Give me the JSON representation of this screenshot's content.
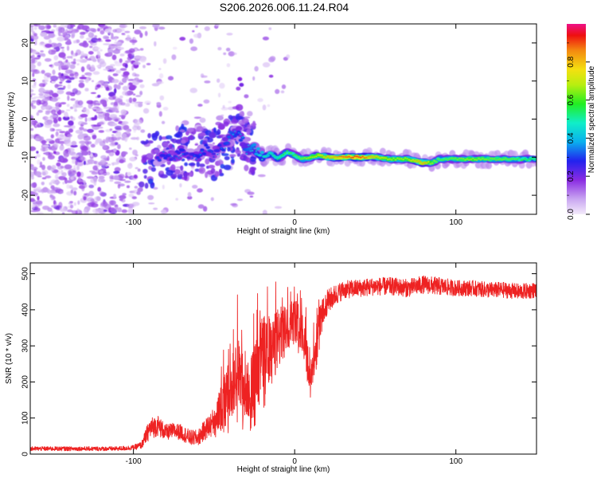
{
  "title": "S206.2026.006.11.24.R04",
  "chart_data": [
    {
      "type": "heatmap",
      "xlabel": "Height of straight line (km)",
      "ylabel": "Frequency (Hz)",
      "xlim": [
        -164,
        150
      ],
      "ylim": [
        -25,
        25
      ],
      "xticks": [
        -100,
        0,
        100
      ],
      "yticks": [
        20,
        10,
        0,
        -10,
        -20
      ],
      "colorbar": {
        "label": "Normalized spectral amplitude",
        "range": [
          0,
          1
        ],
        "ticks": [
          "0.0",
          "0.2",
          "0.4",
          "0.6",
          "0.8"
        ]
      },
      "ridge": {
        "x": [
          -85,
          -80,
          -75,
          -70,
          -65,
          -60,
          -55,
          -50,
          -45,
          -40,
          -35,
          -30,
          -25,
          -20,
          -15,
          -10,
          -5,
          0,
          5,
          10,
          15,
          20,
          30,
          40,
          50,
          60,
          70,
          75,
          80,
          85,
          90,
          100,
          110,
          120,
          130,
          140,
          150
        ],
        "freq": [
          -10.5,
          -9.5,
          -10.2,
          -8.5,
          -9,
          -9.5,
          -8,
          -9,
          -7.5,
          -5,
          -3,
          -8,
          -7.5,
          -10,
          -9,
          -10.5,
          -8.5,
          -9.5,
          -10.5,
          -10,
          -9.5,
          -10,
          -10,
          -10,
          -10,
          -10.5,
          -10.5,
          -11,
          -11.5,
          -11.5,
          -10.5,
          -10.5,
          -10.5,
          -10.5,
          -10.5,
          -10.5,
          -10.5
        ],
        "amplitude": [
          0.3,
          0.35,
          0.3,
          0.35,
          0.3,
          0.35,
          0.35,
          0.3,
          0.35,
          0.4,
          0.35,
          0.4,
          0.45,
          0.5,
          0.5,
          0.55,
          0.6,
          0.6,
          0.65,
          0.7,
          0.75,
          0.8,
          0.9,
          0.95,
          0.8,
          0.7,
          0.7,
          0.8,
          0.85,
          0.7,
          0.6,
          0.65,
          0.7,
          0.65,
          0.65,
          0.6,
          0.55
        ]
      }
    },
    {
      "type": "line",
      "xlabel": "Height of straight line (km)",
      "ylabel": "SNR (10 * v/v)",
      "xlim": [
        -164,
        150
      ],
      "ylim": [
        0,
        530
      ],
      "xticks": [
        -100,
        0,
        100
      ],
      "yticks": [
        0,
        100,
        200,
        300,
        400,
        500
      ],
      "series": [
        {
          "name": "SNR",
          "color": "#ee2222",
          "x": [
            -164,
            -150,
            -130,
            -110,
            -100,
            -95,
            -90,
            -85,
            -80,
            -75,
            -70,
            -65,
            -60,
            -55,
            -50,
            -45,
            -40,
            -37,
            -35,
            -30,
            -25,
            -20,
            -17,
            -15,
            -10,
            -5,
            0,
            5,
            8,
            10,
            12,
            15,
            20,
            25,
            30,
            40,
            50,
            60,
            70,
            80,
            90,
            100,
            110,
            120,
            130,
            140,
            150
          ],
          "y": [
            15,
            15,
            15,
            15,
            18,
            25,
            70,
            80,
            60,
            65,
            60,
            45,
            45,
            70,
            90,
            140,
            180,
            200,
            220,
            170,
            210,
            280,
            300,
            280,
            320,
            350,
            380,
            340,
            260,
            200,
            260,
            360,
            420,
            440,
            455,
            460,
            465,
            465,
            460,
            470,
            465,
            460,
            460,
            455,
            455,
            450,
            455
          ],
          "noise_amplitude": [
            6,
            6,
            6,
            6,
            7,
            10,
            30,
            30,
            22,
            22,
            22,
            22,
            22,
            30,
            40,
            60,
            90,
            110,
            110,
            80,
            90,
            110,
            100,
            90,
            90,
            60,
            60,
            60,
            60,
            60,
            50,
            50,
            35,
            30,
            25,
            25,
            25,
            25,
            25,
            25,
            25,
            22,
            22,
            22,
            22,
            22,
            22
          ]
        }
      ]
    }
  ]
}
